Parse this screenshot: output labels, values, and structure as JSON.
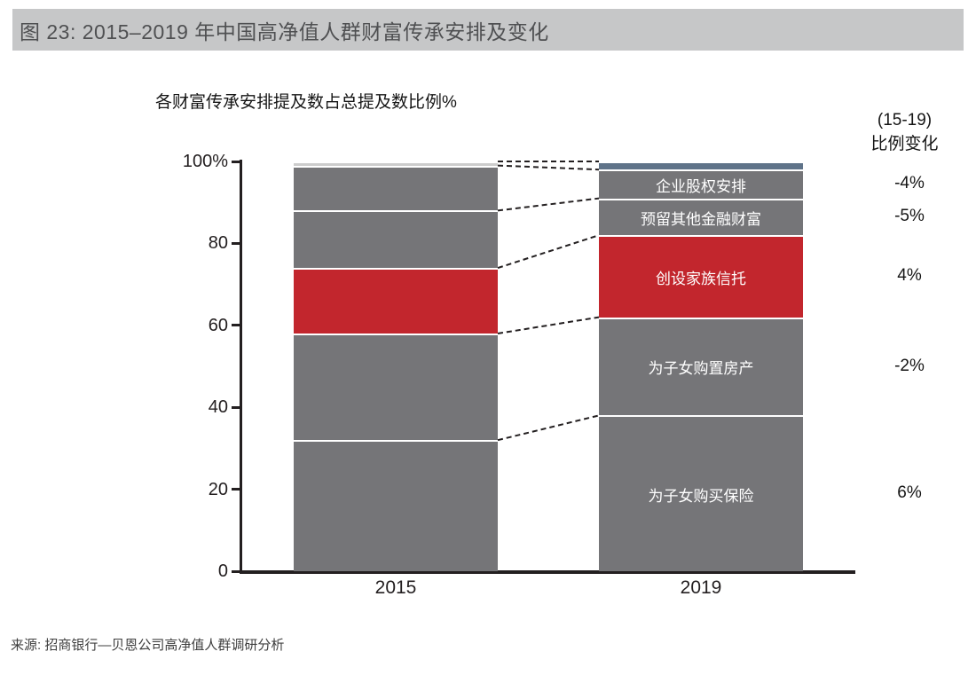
{
  "header": {
    "title": "图 23:  2015–2019 年中国高净值人群财富传承安排及变化"
  },
  "change_header": {
    "line1": "(15-19)",
    "line2": "比例变化"
  },
  "source": "来源: 招商银行—贝恩公司高净值人群调研分析",
  "colors": {
    "band_bg": "#c6c7c8",
    "band_text": "#4f5052",
    "bar_gray": "#757578",
    "bar_red": "#c2262d",
    "top_2015": "#cccccc",
    "top_2019": "#5f7389",
    "axis": "#231f20",
    "segment_label_text": "#ffffff"
  },
  "chart_data": {
    "type": "bar",
    "stacked": true,
    "title": "各财富传承安排提及数占总提及数比例%",
    "categories": [
      "2015",
      "2019"
    ],
    "ylim": [
      0,
      100
    ],
    "yticks": [
      0,
      20,
      40,
      60,
      80,
      100
    ],
    "ytick_labels": [
      "0",
      "20",
      "40",
      "60",
      "80",
      "100%"
    ],
    "grid": false,
    "legend": "labels-inside-2019-bar",
    "series": [
      {
        "name": "为子女购买保险",
        "values": [
          32,
          38
        ],
        "change": "6%",
        "color": "#757578"
      },
      {
        "name": "为子女购置房产",
        "values": [
          26,
          24
        ],
        "change": "-2%",
        "color": "#757578"
      },
      {
        "name": "创设家族信托",
        "values": [
          16,
          20
        ],
        "change": "4%",
        "color": "#c2262d"
      },
      {
        "name": "预留其他金融财富",
        "values": [
          14,
          9
        ],
        "change": "-5%",
        "color": "#757578"
      },
      {
        "name": "企业股权安排",
        "values": [
          11,
          7
        ],
        "change": "-4%",
        "color": "#757578"
      },
      {
        "name": "",
        "values": [
          1,
          2
        ],
        "change": null,
        "color_by_year": [
          "#cccccc",
          "#5f7389"
        ]
      }
    ],
    "connector_style": "dashed"
  }
}
